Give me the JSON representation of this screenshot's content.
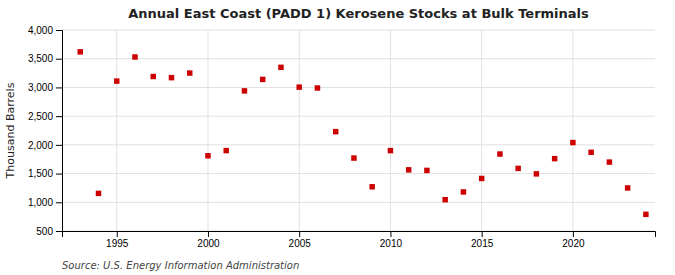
{
  "chart_data": {
    "type": "scatter",
    "title": "Annual East Coast (PADD 1) Kerosene Stocks at Bulk Terminals",
    "y_label": "Thousand Barrels",
    "annotations": [
      "Source: U.S. Energy Information Administration"
    ],
    "color": "#cc0000",
    "marker": "square",
    "grid": true,
    "xlim": [
      1992.0,
      2024.5
    ],
    "xticks": [
      1995,
      2000,
      2005,
      2010,
      2015,
      2020
    ],
    "ylim": [
      500,
      4000
    ],
    "yticks": [
      500,
      {
        "value": 1000,
        "label": "1,000"
      },
      {
        "value": 1500,
        "label": "1,500"
      },
      {
        "value": 2000,
        "label": "2,000"
      },
      {
        "value": 2500,
        "label": "2,500"
      },
      {
        "value": 3000,
        "label": "3,000"
      },
      {
        "value": 3500,
        "label": "3,500"
      },
      {
        "value": 4000,
        "label": "4,000"
      }
    ],
    "x": [
      1993,
      1994,
      1995,
      1996,
      1997,
      1998,
      1999,
      2000,
      2001,
      2002,
      2003,
      2004,
      2005,
      2006,
      2007,
      2008,
      2009,
      2010,
      2011,
      2012,
      2013,
      2014,
      2015,
      2016,
      2017,
      2018,
      2019,
      2020,
      2021,
      2022,
      2023,
      2024
    ],
    "values": [
      3620,
      1155,
      3110,
      3530,
      3190,
      3170,
      3250,
      1810,
      1900,
      2940,
      3140,
      3350,
      3005,
      2990,
      2230,
      1770,
      1270,
      1900,
      1565,
      1555,
      1045,
      1180,
      1415,
      1840,
      1590,
      1495,
      1760,
      2040,
      1870,
      1700,
      1250,
      790
    ]
  }
}
